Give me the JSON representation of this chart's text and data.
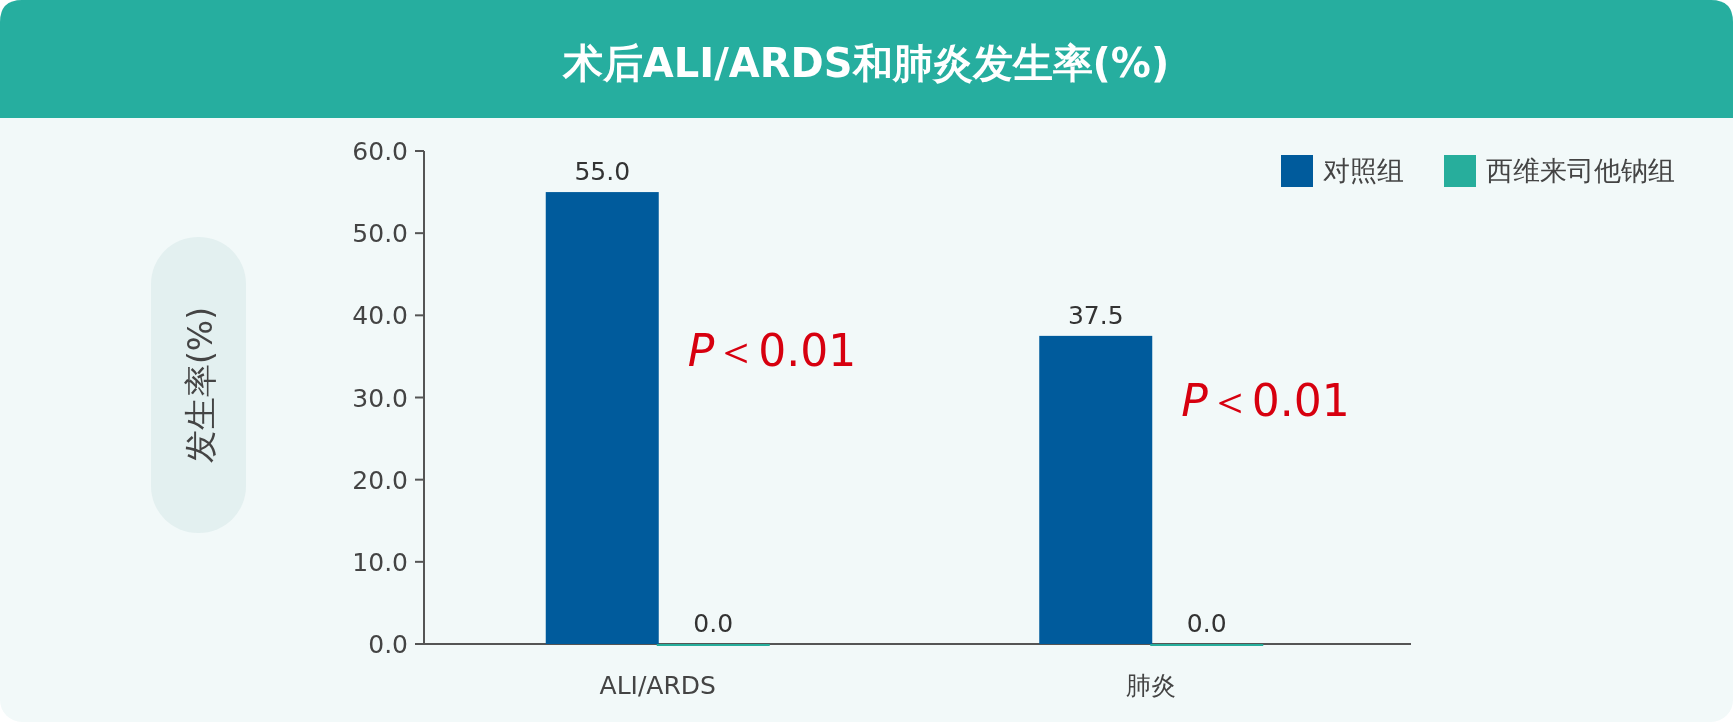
{
  "chart_data": {
    "type": "bar",
    "title": "术后ALI/ARDS和肺炎发生率(%)",
    "ylabel": "发生率(%)",
    "categories": [
      "ALI/ARDS",
      "肺炎"
    ],
    "series": [
      {
        "name": "对照组",
        "color": "#005b9c",
        "values": [
          55.0,
          37.5
        ],
        "value_labels": [
          "55.0",
          "37.5"
        ]
      },
      {
        "name": "西维来司他钠组",
        "color": "#27ae9c",
        "values": [
          0.0,
          0.0
        ],
        "value_labels": [
          "0.0",
          "0.0"
        ]
      }
    ],
    "ylim": [
      0,
      60
    ],
    "yticks": [
      {
        "value": 0,
        "label": "0.0"
      },
      {
        "value": 10,
        "label": "10.0"
      },
      {
        "value": 20,
        "label": "20.0"
      },
      {
        "value": 30,
        "label": "30.0"
      },
      {
        "value": 40,
        "label": "40.0"
      },
      {
        "value": 50,
        "label": "50.0"
      },
      {
        "value": 60,
        "label": "60.0"
      }
    ],
    "annotations": [
      {
        "text": "*P*＜0.01",
        "x": "ALI/ARDS",
        "y": 36
      },
      {
        "text": "*P*＜0.01",
        "x": "肺炎",
        "y": 30
      }
    ],
    "legend": "top right",
    "grid": false
  }
}
